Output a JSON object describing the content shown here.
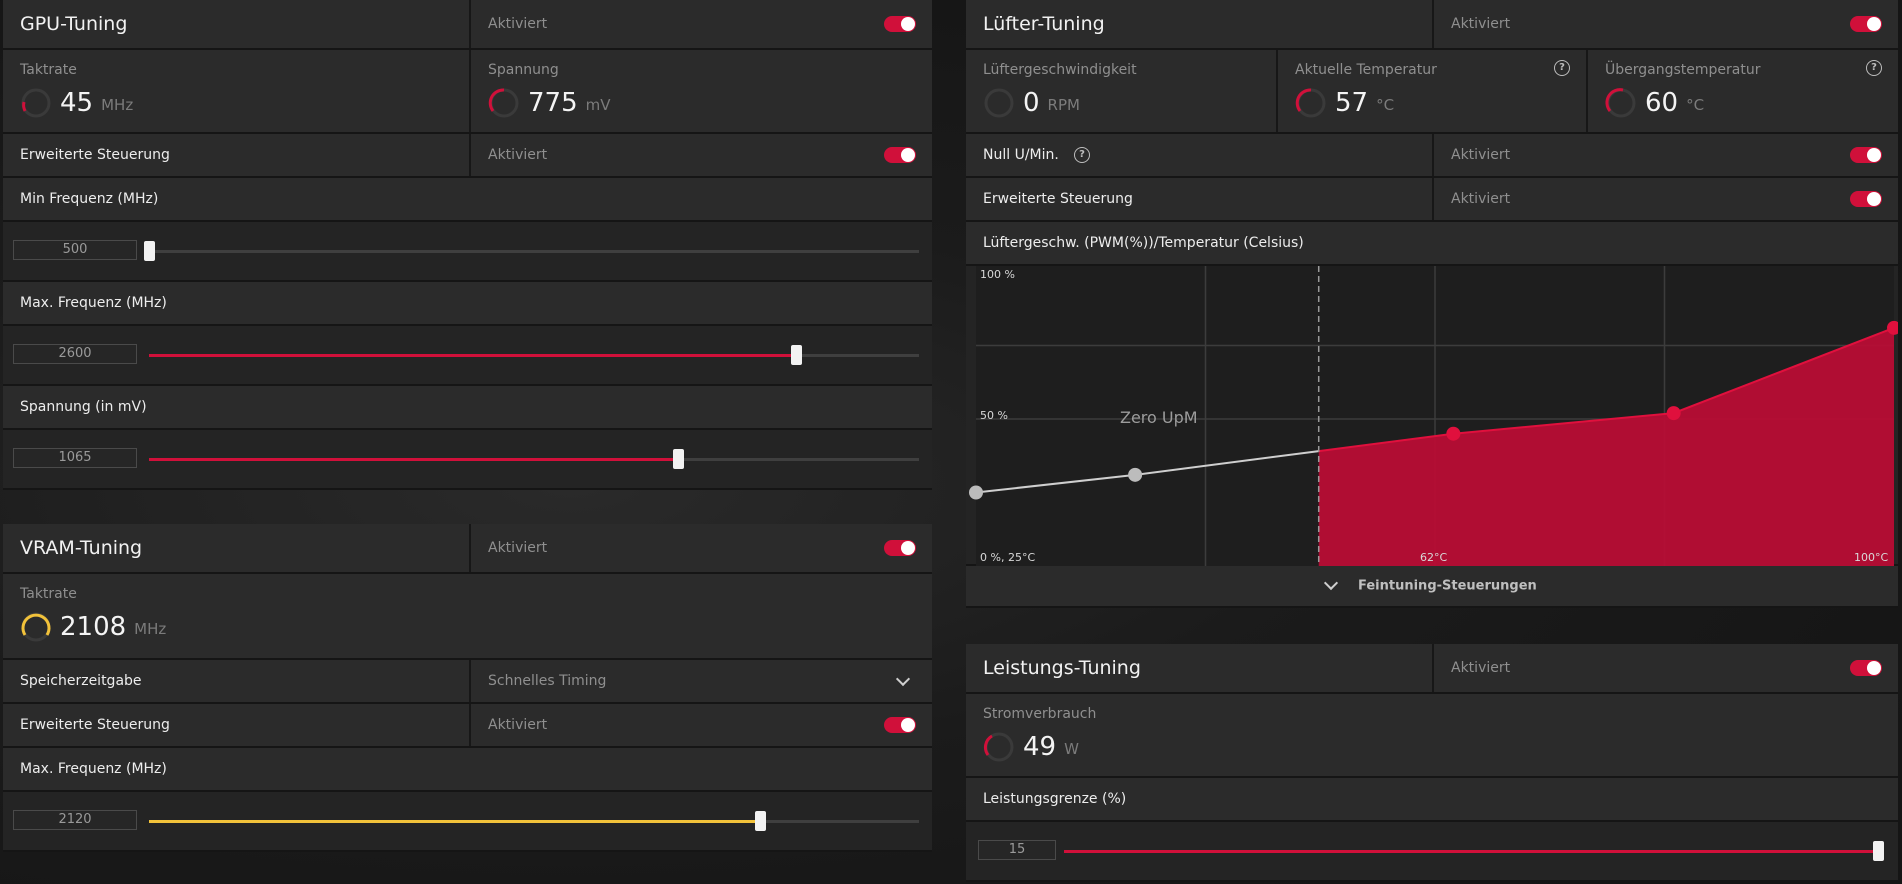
{
  "gpu": {
    "title": "GPU-Tuning",
    "status": "Aktiviert",
    "clock": {
      "label": "Taktrate",
      "value": "45",
      "unit": "MHz"
    },
    "voltage": {
      "label": "Spannung",
      "value": "775",
      "unit": "mV"
    },
    "advanced": {
      "label": "Erweiterte Steuerung",
      "status": "Aktiviert"
    },
    "min_freq": {
      "label": "Min Frequenz (MHz)",
      "value": "500",
      "fraction": 0.0
    },
    "max_freq": {
      "label": "Max. Frequenz (MHz)",
      "value": "2600",
      "fraction": 0.84
    },
    "volt_slider": {
      "label": "Spannung (in mV)",
      "value": "1065",
      "fraction": 0.687
    }
  },
  "vram": {
    "title": "VRAM-Tuning",
    "status": "Aktiviert",
    "clock": {
      "label": "Taktrate",
      "value": "2108",
      "unit": "MHz"
    },
    "timing": {
      "label": "Speicherzeitgabe",
      "value": "Schnelles Timing"
    },
    "advanced": {
      "label": "Erweiterte Steuerung",
      "status": "Aktiviert"
    },
    "max_freq": {
      "label": "Max. Frequenz (MHz)",
      "value": "2120",
      "fraction": 0.793
    }
  },
  "fan": {
    "title": "Lüfter-Tuning",
    "status": "Aktiviert",
    "speed": {
      "label": "Lüftergeschwindigkeit",
      "value": "0",
      "unit": "RPM"
    },
    "temp": {
      "label": "Aktuelle Temperatur",
      "value": "57",
      "unit": "°C"
    },
    "junction": {
      "label": "Übergangstemperatur",
      "value": "60",
      "unit": "°C"
    },
    "zero_rpm": {
      "label": "Null U/Min.",
      "status": "Aktiviert"
    },
    "advanced": {
      "label": "Erweiterte Steuerung",
      "status": "Aktiviert"
    },
    "curve_label": "Lüftergeschw. (PWM(%))/Temperatur (Celsius)",
    "fine_tune": "Feintuning-Steuerungen"
  },
  "chart_data": {
    "type": "line",
    "title": "",
    "ytick_top": "100 %",
    "ytick_mid": "50 %",
    "origin_label": "0 %, 25°C",
    "xtick_mid": "62°C",
    "xtick_max": "100°C",
    "annotation": "Zero UpM",
    "xlim": [
      25,
      100
    ],
    "ylim": [
      0,
      100
    ],
    "series": [
      {
        "x": [
          25,
          38,
          64,
          82,
          100
        ],
        "y": [
          25,
          31,
          45,
          52,
          81
        ]
      }
    ],
    "zero_rpm_threshold": 53
  },
  "power": {
    "title": "Leistungs-Tuning",
    "status": "Aktiviert",
    "consumption": {
      "label": "Stromverbrauch",
      "value": "49",
      "unit": "W"
    },
    "limit": {
      "label": "Leistungsgrenze (%)",
      "value": "15",
      "fraction": 1.0
    }
  },
  "colors": {
    "accent": "#d0103a",
    "vram_accent": "#f2c23a",
    "gauge_track": "#3a3a3a"
  }
}
